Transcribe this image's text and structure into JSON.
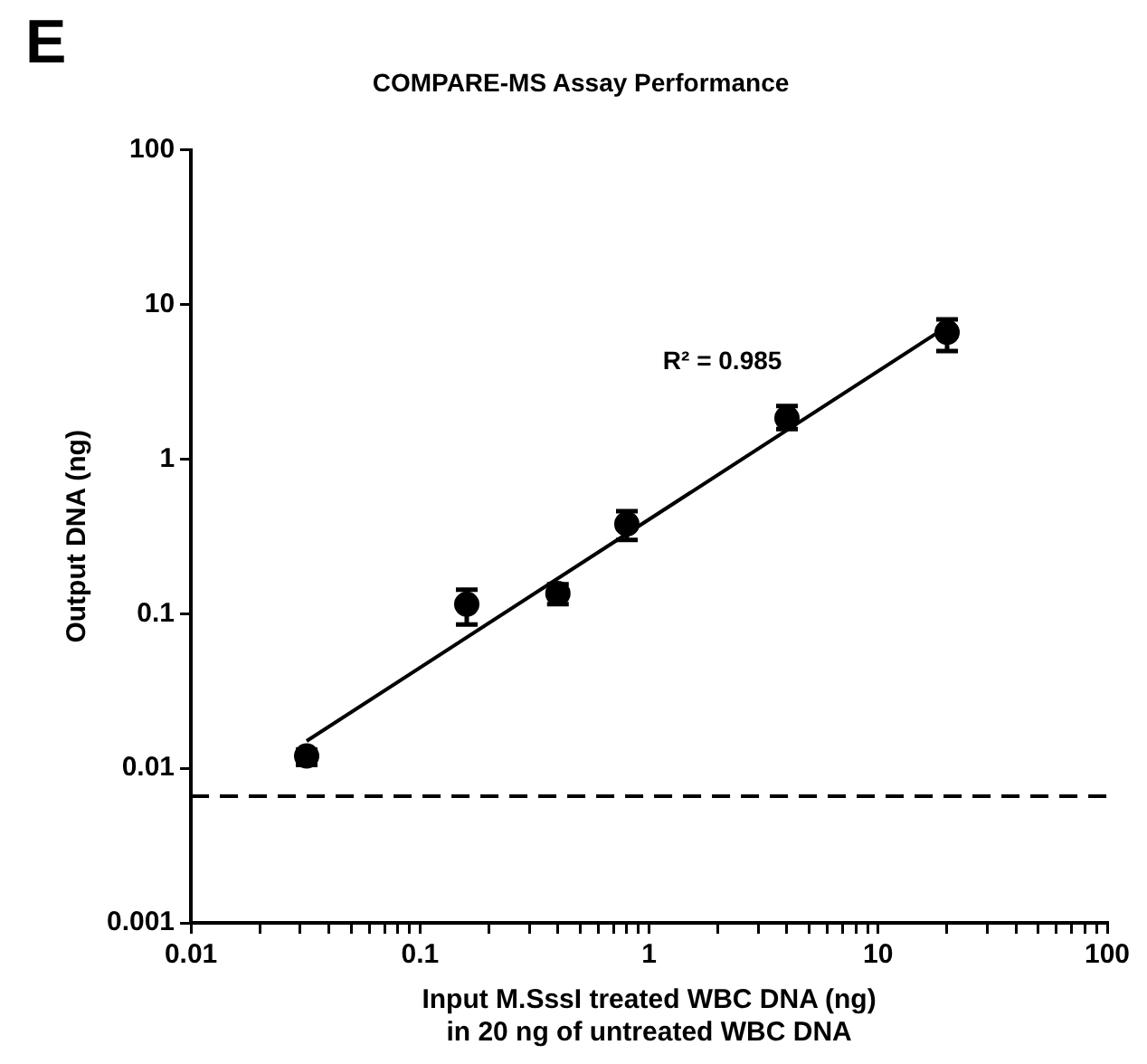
{
  "chart_data": {
    "type": "scatter",
    "title": "COMPARE-MS Assay Performance",
    "xlabel": "Input M.SssI treated WBC DNA (ng)\nin 20 ng of untreated WBC DNA",
    "ylabel": "Output DNA (ng)",
    "annotations": [
      "E",
      "R² = 0.985"
    ],
    "log": "xy",
    "grid": false,
    "legend": false,
    "marker": "circle",
    "xlim": [
      0.01,
      100
    ],
    "ylim": [
      0.001,
      100
    ],
    "xticks": [
      0.01,
      {
        "value": 0.02,
        "label": null
      },
      {
        "value": 0.03,
        "label": null
      },
      {
        "value": 0.04,
        "label": null
      },
      {
        "value": 0.05,
        "label": null
      },
      {
        "value": 0.06,
        "label": null
      },
      {
        "value": 0.07,
        "label": null
      },
      {
        "value": 0.08,
        "label": null
      },
      {
        "value": 0.09,
        "label": null
      },
      0.1,
      {
        "value": 0.2,
        "label": null
      },
      {
        "value": 0.3,
        "label": null
      },
      {
        "value": 0.4,
        "label": null
      },
      {
        "value": 0.5,
        "label": null
      },
      {
        "value": 0.6,
        "label": null
      },
      {
        "value": 0.7,
        "label": null
      },
      {
        "value": 0.8,
        "label": null
      },
      {
        "value": 0.9,
        "label": null
      },
      1,
      {
        "value": 2,
        "label": null
      },
      {
        "value": 3,
        "label": null
      },
      {
        "value": 4,
        "label": null
      },
      {
        "value": 5,
        "label": null
      },
      {
        "value": 6,
        "label": null
      },
      {
        "value": 7,
        "label": null
      },
      {
        "value": 8,
        "label": null
      },
      {
        "value": 9,
        "label": null
      },
      10,
      {
        "value": 20,
        "label": null
      },
      {
        "value": 30,
        "label": null
      },
      {
        "value": 40,
        "label": null
      },
      {
        "value": 50,
        "label": null
      },
      {
        "value": 60,
        "label": null
      },
      {
        "value": 70,
        "label": null
      },
      {
        "value": 80,
        "label": null
      },
      {
        "value": 90,
        "label": null
      },
      100
    ],
    "yticks": [
      0.001,
      0.01,
      0.1,
      1,
      10,
      100
    ],
    "ref_lines": [
      {
        "axis": "y",
        "value": 0.0066,
        "line_style": "dashed",
        "color": "#000000"
      }
    ],
    "series": [
      {
        "type": "scatter",
        "color": "#000000",
        "x": [
          0.032,
          0.16,
          0.4,
          0.8,
          4,
          20
        ],
        "values": [
          0.012,
          0.115,
          0.135,
          0.38,
          1.84,
          6.6
        ],
        "errors": [
          [
            0.0105,
            0.0132
          ],
          [
            0.085,
            0.143
          ],
          [
            0.115,
            0.155
          ],
          [
            0.3,
            0.46
          ],
          [
            1.56,
            2.2
          ],
          [
            5,
            8
          ]
        ]
      },
      {
        "type": "line",
        "color": "#000000",
        "marker": "none",
        "x": [
          0.032,
          20
        ],
        "values": [
          0.015,
          7.2
        ]
      }
    ]
  }
}
